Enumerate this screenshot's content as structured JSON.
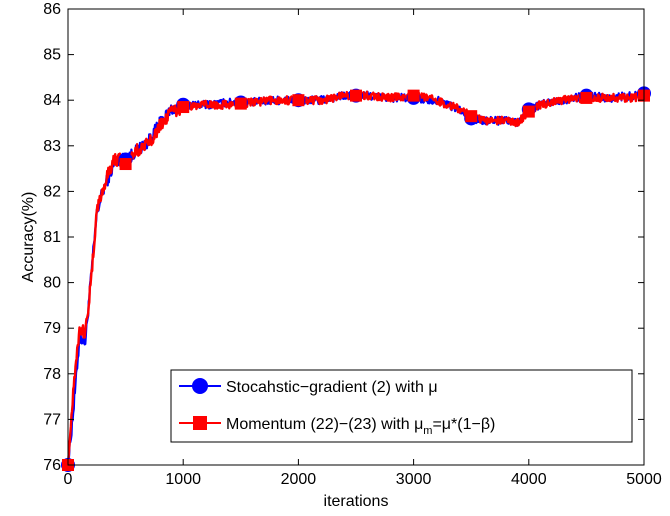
{
  "chart_data": {
    "type": "line",
    "title": "",
    "xlabel": "iterations",
    "ylabel": "Accuracy(%)",
    "xlim": [
      0,
      5000
    ],
    "ylim": [
      76,
      86
    ],
    "xticks": [
      0,
      1000,
      2000,
      3000,
      4000,
      5000
    ],
    "yticks": [
      76,
      77,
      78,
      79,
      80,
      81,
      82,
      83,
      84,
      85,
      86
    ],
    "grid": false,
    "legend_position": "lower-right",
    "series": [
      {
        "name": "Stocahstic−gradient (2) with  μ",
        "color": "#0000ff",
        "marker": "circle",
        "marker_x": [
          0,
          500,
          1000,
          1500,
          2000,
          2500,
          3000,
          3500,
          4000,
          4500,
          5000
        ],
        "x": [
          0,
          50,
          100,
          150,
          200,
          250,
          300,
          350,
          400,
          450,
          500,
          600,
          700,
          800,
          900,
          1000,
          1200,
          1400,
          1600,
          1800,
          2000,
          2200,
          2400,
          2600,
          2800,
          3000,
          3200,
          3400,
          3500,
          3600,
          3800,
          3900,
          4000,
          4100,
          4300,
          4500,
          4700,
          4900,
          5000
        ],
        "y": [
          76.0,
          77.3,
          78.8,
          78.7,
          80.1,
          81.5,
          82.0,
          82.3,
          82.6,
          82.7,
          82.7,
          82.9,
          83.1,
          83.5,
          83.8,
          83.9,
          83.9,
          83.95,
          83.95,
          84.0,
          84.0,
          84.0,
          84.1,
          84.1,
          84.05,
          84.05,
          84.0,
          83.8,
          83.6,
          83.55,
          83.55,
          83.5,
          83.8,
          83.9,
          84.0,
          84.1,
          84.05,
          84.1,
          84.15
        ]
      },
      {
        "name": "Momentum (22)−(23) with  μ",
        "name_sub": "m",
        "name_tail": "=μ*(1−β)",
        "color": "#ff0000",
        "marker": "square",
        "marker_x": [
          0,
          500,
          1000,
          1500,
          2000,
          2500,
          3000,
          3500,
          4000,
          4500,
          5000
        ],
        "x": [
          0,
          50,
          100,
          150,
          200,
          250,
          300,
          350,
          400,
          450,
          500,
          600,
          700,
          800,
          900,
          1000,
          1200,
          1400,
          1600,
          1800,
          2000,
          2200,
          2400,
          2600,
          2800,
          3000,
          3200,
          3400,
          3500,
          3600,
          3800,
          3900,
          4000,
          4100,
          4300,
          4500,
          4700,
          4900,
          5000
        ],
        "y": [
          76.0,
          77.8,
          79.0,
          78.9,
          80.0,
          81.6,
          82.0,
          82.4,
          82.7,
          82.7,
          82.6,
          82.9,
          83.05,
          83.45,
          83.75,
          83.85,
          83.9,
          83.9,
          83.95,
          84.0,
          84.0,
          84.0,
          84.1,
          84.1,
          84.05,
          84.1,
          84.0,
          83.8,
          83.65,
          83.55,
          83.55,
          83.5,
          83.75,
          83.9,
          84.0,
          84.05,
          84.05,
          84.05,
          84.1
        ]
      }
    ]
  }
}
